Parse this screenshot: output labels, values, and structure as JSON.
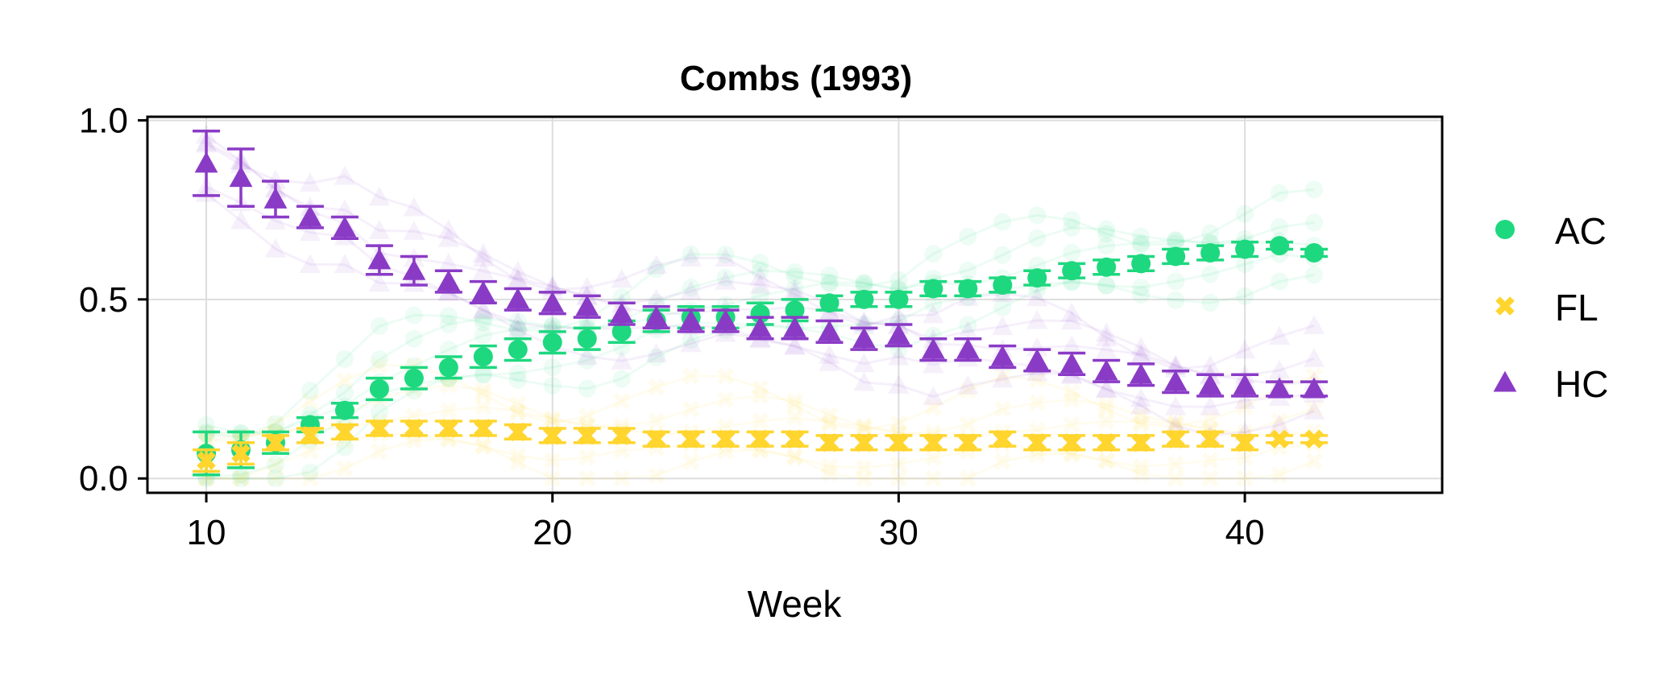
{
  "chart_data": {
    "type": "line",
    "title": "Combs (1993)",
    "xlabel": "Week",
    "ylabel": "",
    "xlim": [
      8.3,
      45.7
    ],
    "ylim": [
      -0.04,
      1.01
    ],
    "xticks": [
      10,
      20,
      30,
      40
    ],
    "yticks": [
      "0.0",
      "0.5",
      "1.0"
    ],
    "ytick_values": [
      0.0,
      0.5,
      1.0
    ],
    "grid": true,
    "legend_position": "right",
    "x": [
      10,
      11,
      12,
      13,
      14,
      15,
      16,
      17,
      18,
      19,
      20,
      21,
      22,
      23,
      24,
      25,
      26,
      27,
      28,
      29,
      30,
      31,
      32,
      33,
      34,
      35,
      36,
      37,
      38,
      39,
      40,
      41,
      42
    ],
    "series": [
      {
        "name": "AC",
        "color": "#1ed87f",
        "marker": "circle",
        "values": [
          0.07,
          0.08,
          0.1,
          0.15,
          0.19,
          0.25,
          0.28,
          0.31,
          0.34,
          0.36,
          0.38,
          0.39,
          0.41,
          0.44,
          0.45,
          0.45,
          0.46,
          0.47,
          0.49,
          0.5,
          0.5,
          0.53,
          0.53,
          0.54,
          0.56,
          0.58,
          0.59,
          0.6,
          0.62,
          0.63,
          0.64,
          0.65,
          0.63
        ],
        "errors": [
          0.06,
          0.05,
          0.03,
          0.02,
          0.02,
          0.03,
          0.03,
          0.03,
          0.03,
          0.03,
          0.03,
          0.03,
          0.03,
          0.03,
          0.03,
          0.03,
          0.03,
          0.03,
          0.02,
          0.02,
          0.02,
          0.02,
          0.02,
          0.02,
          0.02,
          0.02,
          0.02,
          0.02,
          0.02,
          0.02,
          0.02,
          0.01,
          0.01
        ]
      },
      {
        "name": "FL",
        "color": "#ffd52e",
        "marker": "x",
        "values": [
          0.05,
          0.07,
          0.1,
          0.12,
          0.13,
          0.14,
          0.14,
          0.14,
          0.14,
          0.13,
          0.12,
          0.12,
          0.12,
          0.11,
          0.11,
          0.11,
          0.11,
          0.11,
          0.1,
          0.1,
          0.1,
          0.1,
          0.1,
          0.11,
          0.1,
          0.1,
          0.1,
          0.1,
          0.11,
          0.11,
          0.1,
          0.11,
          0.11
        ],
        "errors": [
          0.03,
          0.03,
          0.02,
          0.02,
          0.02,
          0.02,
          0.02,
          0.02,
          0.02,
          0.02,
          0.02,
          0.02,
          0.02,
          0.02,
          0.02,
          0.02,
          0.02,
          0.02,
          0.02,
          0.02,
          0.02,
          0.02,
          0.02,
          0.02,
          0.02,
          0.02,
          0.02,
          0.02,
          0.02,
          0.02,
          0.02,
          0.01,
          0.01
        ]
      },
      {
        "name": "HC",
        "color": "#8a3bc6",
        "marker": "triangle",
        "values": [
          0.88,
          0.84,
          0.78,
          0.73,
          0.7,
          0.61,
          0.58,
          0.55,
          0.52,
          0.5,
          0.49,
          0.48,
          0.46,
          0.45,
          0.44,
          0.44,
          0.42,
          0.42,
          0.41,
          0.39,
          0.4,
          0.36,
          0.36,
          0.34,
          0.33,
          0.32,
          0.3,
          0.29,
          0.27,
          0.26,
          0.26,
          0.25,
          0.25
        ],
        "errors": [
          0.09,
          0.08,
          0.05,
          0.03,
          0.03,
          0.04,
          0.04,
          0.03,
          0.03,
          0.03,
          0.03,
          0.03,
          0.03,
          0.03,
          0.03,
          0.03,
          0.03,
          0.03,
          0.03,
          0.03,
          0.03,
          0.03,
          0.03,
          0.03,
          0.03,
          0.03,
          0.03,
          0.03,
          0.03,
          0.03,
          0.03,
          0.02,
          0.02
        ]
      }
    ]
  }
}
